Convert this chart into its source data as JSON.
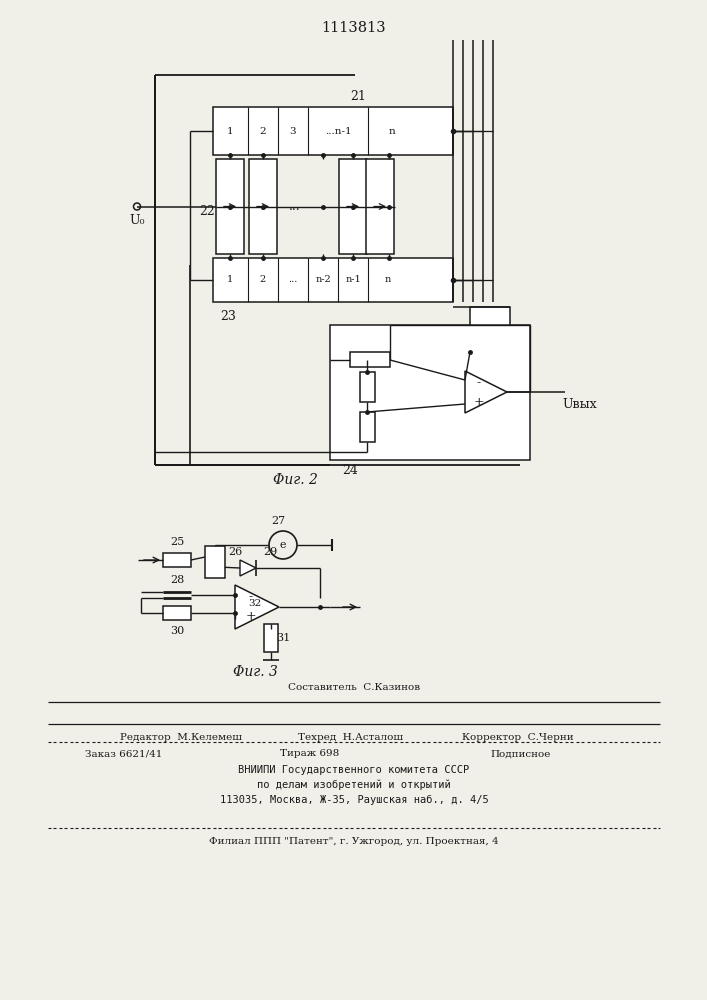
{
  "title": "1113813",
  "fig2_label": "Φиг. 2",
  "fig3_label": "Φиг. 3",
  "u0_label": "U₀",
  "u_out_label": "Uвых",
  "block21_label": "21",
  "block22_label": "22",
  "block23_label": "23",
  "block24_label": "24",
  "footer_line1": "Составитель  С.Казинов",
  "footer_line2a": "Редактор  М.Келемеш",
  "footer_line2b": "Техред  Н.Асталош",
  "footer_line2c": "Корректор  С.Черни",
  "footer_line3a": "Заказ 6621/41",
  "footer_line3b": "Тираж 698",
  "footer_line3c": "Подписное",
  "footer_line4": "ВНИИПИ Государственного комитета СССР",
  "footer_line5": "по делам изобретений и открытий",
  "footer_line6": "113035, Москва, Ж-35, Раушская наб., д. 4/5",
  "footer_line7": "Филиал ППП \"Патент\", г. Ужгород, ул. Проектная, 4",
  "bg_color": "#f0efe8",
  "line_color": "#1a1a1a"
}
